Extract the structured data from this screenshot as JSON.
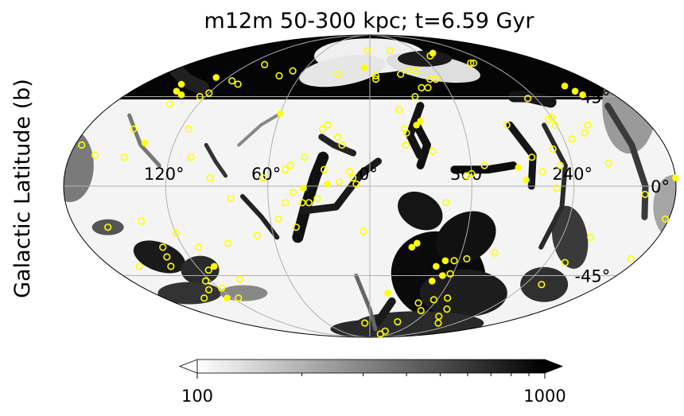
{
  "chart_data": {
    "type": "scatter",
    "title": "m12m 50-300 kpc; t=6.59 Gyr",
    "xlabel": "",
    "ylabel": "Galactic Latitude (b)",
    "projection": "mollweide",
    "grid": true,
    "longitude_ticks": [
      "120°",
      "60°",
      "0°",
      "300°",
      "240°"
    ],
    "latitude_ticks": [
      "45°",
      "0°",
      "-45°"
    ],
    "colorbar": {
      "scale": "log",
      "range": [
        100,
        1000
      ],
      "tick_labels": [
        "100",
        "1000"
      ],
      "extend": "both",
      "colormap": "gray_r"
    },
    "series": [
      {
        "marker": "filled-circle",
        "color": "#ffff00",
        "points": [
          {
            "l": 5,
            "b": 62
          },
          {
            "l": 130,
            "b": 56
          },
          {
            "l": 146,
            "b": 48
          },
          {
            "l": 150,
            "b": 52
          },
          {
            "l": 139,
            "b": 46
          },
          {
            "l": 60,
            "b": 36
          },
          {
            "l": 327,
            "b": 32
          },
          {
            "l": 330,
            "b": 30
          },
          {
            "l": 138,
            "b": 21
          },
          {
            "l": 282,
            "b": 72
          },
          {
            "l": 207,
            "b": 51
          },
          {
            "l": 205,
            "b": 48
          },
          {
            "l": 203,
            "b": 46
          },
          {
            "l": 272,
            "b": 9
          },
          {
            "l": 268,
            "b": 3
          },
          {
            "l": 180,
            "b": 4
          },
          {
            "l": 25,
            "b": 1
          },
          {
            "l": 39,
            "b": -1
          },
          {
            "l": 330,
            "b": -28
          },
          {
            "l": 333,
            "b": -30
          },
          {
            "l": 314,
            "b": -40
          },
          {
            "l": 309,
            "b": -37
          },
          {
            "l": 313,
            "b": -48
          },
          {
            "l": 307,
            "b": -45
          },
          {
            "l": 345,
            "b": -55
          },
          {
            "l": 125,
            "b": -58
          },
          {
            "l": 108,
            "b": -40
          }
        ]
      },
      {
        "marker": "open-circle",
        "color": "#ffff00",
        "points": [
          {
            "l": 3,
            "b": 74
          },
          {
            "l": 333,
            "b": 74
          },
          {
            "l": 290,
            "b": 70
          },
          {
            "l": 258,
            "b": 65
          },
          {
            "l": 255,
            "b": 65
          },
          {
            "l": 333,
            "b": 58
          },
          {
            "l": 325,
            "b": 60
          },
          {
            "l": 318,
            "b": 60
          },
          {
            "l": 305,
            "b": 55
          },
          {
            "l": 310,
            "b": 55
          },
          {
            "l": 315,
            "b": 50
          },
          {
            "l": 320,
            "b": 50
          },
          {
            "l": 327,
            "b": 45
          },
          {
            "l": 340,
            "b": 38
          },
          {
            "l": 355,
            "b": 55
          },
          {
            "l": 28,
            "b": 58
          },
          {
            "l": 70,
            "b": 60
          },
          {
            "l": 78,
            "b": 57
          },
          {
            "l": 113,
            "b": 54
          },
          {
            "l": 120,
            "b": 47
          },
          {
            "l": 124,
            "b": 45
          },
          {
            "l": 104,
            "b": 64
          },
          {
            "l": 105,
            "b": 52
          },
          {
            "l": 140,
            "b": 41
          },
          {
            "l": 150,
            "b": 28
          },
          {
            "l": 147,
            "b": 14
          },
          {
            "l": 115,
            "b": 28
          },
          {
            "l": 107,
            "b": 14
          },
          {
            "l": 94,
            "b": 4
          },
          {
            "l": 82,
            "b": -6
          },
          {
            "l": 63,
            "b": 4
          },
          {
            "l": 50,
            "b": 8
          },
          {
            "l": 47,
            "b": 10
          },
          {
            "l": 39,
            "b": 14
          },
          {
            "l": 30,
            "b": 28
          },
          {
            "l": 27,
            "b": 30
          },
          {
            "l": 20,
            "b": 24
          },
          {
            "l": 17,
            "b": 20
          },
          {
            "l": 12,
            "b": 7
          },
          {
            "l": 10,
            "b": 4
          },
          {
            "l": 8,
            "b": 1
          },
          {
            "l": 18,
            "b": 2
          },
          {
            "l": 27,
            "b": 8
          },
          {
            "l": 31,
            "b": -6
          },
          {
            "l": 36,
            "b": -8
          },
          {
            "l": 40,
            "b": -8
          },
          {
            "l": 45,
            "b": -3
          },
          {
            "l": 50,
            "b": -8
          },
          {
            "l": 45,
            "b": -20
          },
          {
            "l": 55,
            "b": -16
          },
          {
            "l": 70,
            "b": -24
          },
          {
            "l": 4,
            "b": -22
          },
          {
            "l": 338,
            "b": 28
          },
          {
            "l": 337,
            "b": 26
          },
          {
            "l": 338,
            "b": 20
          },
          {
            "l": 322,
            "b": 17
          },
          {
            "l": 272,
            "b": 30
          },
          {
            "l": 263,
            "b": 14
          },
          {
            "l": 246,
            "b": 44
          },
          {
            "l": 243,
            "b": 33
          },
          {
            "l": 240,
            "b": 34
          },
          {
            "l": 241,
            "b": 30
          },
          {
            "l": 225,
            "b": 26
          },
          {
            "l": 220,
            "b": 30
          },
          {
            "l": 235,
            "b": 23
          },
          {
            "l": 249,
            "b": 18
          },
          {
            "l": 247,
            "b": 10
          },
          {
            "l": 258,
            "b": 7
          },
          {
            "l": 292,
            "b": 10
          },
          {
            "l": 300,
            "b": 6
          },
          {
            "l": 303,
            "b": 5
          },
          {
            "l": 250,
            "b": -1
          },
          {
            "l": 218,
            "b": 11
          },
          {
            "l": 198,
            "b": -4
          },
          {
            "l": 182,
            "b": -16
          },
          {
            "l": 315,
            "b": -8
          },
          {
            "l": 303,
            "b": -37
          },
          {
            "l": 295,
            "b": -36
          },
          {
            "l": 302,
            "b": -44
          },
          {
            "l": 278,
            "b": -33
          },
          {
            "l": 292,
            "b": -58
          },
          {
            "l": 227,
            "b": -38
          },
          {
            "l": 222,
            "b": -25
          },
          {
            "l": 227,
            "b": -50
          },
          {
            "l": 303,
            "b": -59
          },
          {
            "l": 307,
            "b": -66
          },
          {
            "l": 315,
            "b": -61
          },
          {
            "l": 323,
            "b": -74
          },
          {
            "l": 265,
            "b": -75
          },
          {
            "l": 280,
            "b": -70
          },
          {
            "l": 282,
            "b": -65
          },
          {
            "l": 185,
            "b": -36
          },
          {
            "l": 176,
            "b": 20
          },
          {
            "l": 165,
            "b": 15
          },
          {
            "l": 160,
            "b": -20
          },
          {
            "l": 160,
            "b": -40
          },
          {
            "l": 138,
            "b": -40
          },
          {
            "l": 135,
            "b": -35
          },
          {
            "l": 133,
            "b": -30
          },
          {
            "l": 138,
            "b": -17
          },
          {
            "l": 120,
            "b": -23
          },
          {
            "l": 114,
            "b": -42
          },
          {
            "l": 110,
            "b": -30
          },
          {
            "l": 97,
            "b": -47
          },
          {
            "l": 90,
            "b": -28
          },
          {
            "l": 124,
            "b": -48
          },
          {
            "l": 118,
            "b": -52
          },
          {
            "l": 115,
            "b": -58
          },
          {
            "l": 130,
            "b": -53
          },
          {
            "l": 145,
            "b": -58
          },
          {
            "l": 7,
            "b": -75
          },
          {
            "l": 328,
            "b": -82
          },
          {
            "l": 330,
            "b": -85
          },
          {
            "l": 355,
            "b": 57
          }
        ]
      }
    ]
  }
}
